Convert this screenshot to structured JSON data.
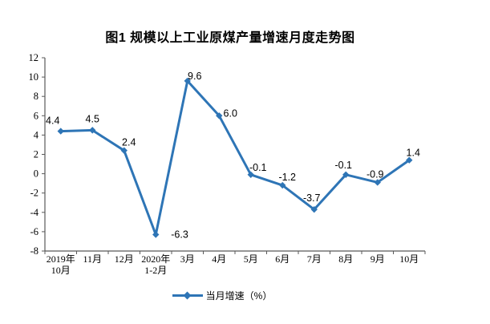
{
  "page": {
    "background": "#ffffff"
  },
  "chart_data": {
    "type": "line",
    "title": "图1  规模以上工业原煤产量增速月度走势图",
    "categories": [
      "2019年\n10月",
      "11月",
      "12月",
      "2020年\n1-2月",
      "3月",
      "4月",
      "5月",
      "6月",
      "7月",
      "8月",
      "9月",
      "10月"
    ],
    "values": [
      4.4,
      4.5,
      2.4,
      -6.3,
      9.6,
      6.0,
      -0.1,
      -1.2,
      -3.7,
      -0.1,
      -0.9,
      1.4
    ],
    "value_labels": [
      "4.4",
      "4.5",
      "2.4",
      "-6.3",
      "9.6",
      "6.0",
      "-0.1",
      "-1.2",
      "-3.7",
      "-0.1",
      "-0.9",
      "1.4"
    ],
    "ylim": [
      -8,
      12
    ],
    "ytick_step": 2,
    "yticks": [
      12,
      10,
      8,
      6,
      4,
      2,
      0,
      -2,
      -4,
      -6,
      -8
    ],
    "grid": false,
    "legend": "当月增速（%）",
    "legend_position": "bottom",
    "marker": "diamond",
    "line_color": "#2E75B6",
    "data_label_color": "#000000",
    "axis_color": "#595959",
    "tick_label_color": "#000000",
    "xlabel": "",
    "ylabel": ""
  }
}
